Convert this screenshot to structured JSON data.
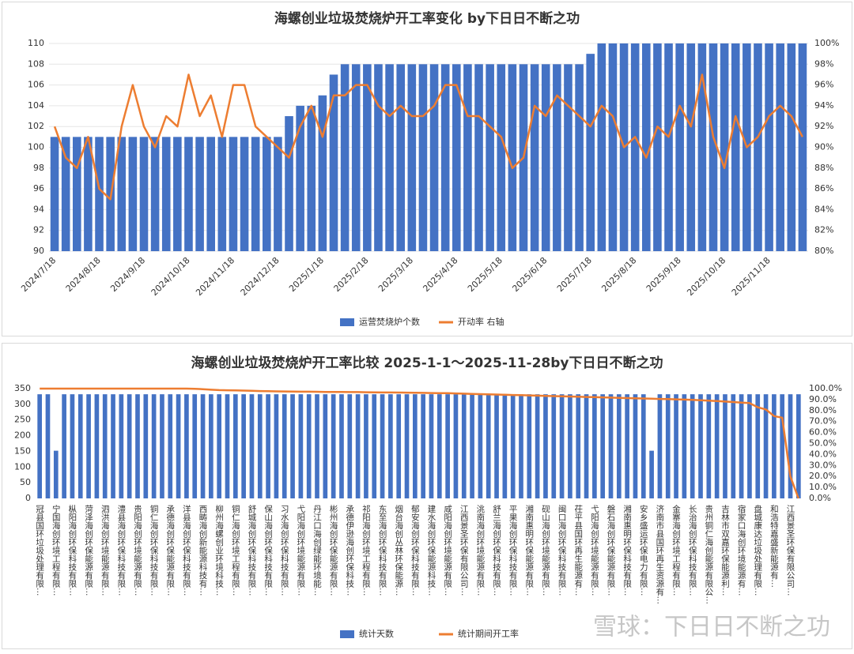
{
  "chart_data": [
    {
      "type": "combo",
      "title": "海螺创业垃圾焚烧炉开工率变化 by下日日不断之功",
      "grid": true,
      "categories": [
        "2024/7/18",
        null,
        null,
        null,
        "2024/8/18",
        null,
        null,
        null,
        "2024/9/18",
        null,
        null,
        null,
        "2024/10/18",
        null,
        null,
        null,
        "2024/11/18",
        null,
        null,
        null,
        "2024/12/18",
        null,
        null,
        null,
        "2025/1/18",
        null,
        null,
        null,
        "2025/2/18",
        null,
        null,
        null,
        "2025/3/18",
        null,
        null,
        null,
        "2025/4/18",
        null,
        null,
        null,
        "2025/5/18",
        null,
        null,
        null,
        "2025/6/18",
        null,
        null,
        null,
        "2025/7/18",
        null,
        null,
        null,
        "2025/8/18",
        null,
        null,
        null,
        "2025/9/18",
        null,
        null,
        null,
        "2025/10/18",
        null,
        null,
        null,
        "2025/11/18",
        null,
        null,
        null
      ],
      "ylim": [
        90,
        110
      ],
      "yticks": [
        90,
        92,
        94,
        96,
        98,
        100,
        102,
        104,
        106,
        108,
        110
      ],
      "y2lim": [
        80,
        100
      ],
      "y2ticks": [
        {
          "value": 80,
          "label": "80%"
        },
        {
          "value": 82,
          "label": "82%"
        },
        {
          "value": 84,
          "label": "84%"
        },
        {
          "value": 86,
          "label": "86%"
        },
        {
          "value": 88,
          "label": "88%"
        },
        {
          "value": 90,
          "label": "90%"
        },
        {
          "value": 92,
          "label": "92%"
        },
        {
          "value": 94,
          "label": "94%"
        },
        {
          "value": 96,
          "label": "96%"
        },
        {
          "value": 98,
          "label": "98%"
        },
        {
          "value": 100,
          "label": "100%"
        }
      ],
      "series": [
        {
          "name": "运营焚烧炉个数",
          "type": "bar",
          "color": "#4472c4",
          "values": [
            101,
            101,
            101,
            101,
            101,
            101,
            101,
            101,
            101,
            101,
            101,
            101,
            101,
            101,
            101,
            101,
            101,
            101,
            101,
            101,
            101,
            103,
            104,
            104,
            105,
            107,
            108,
            108,
            108,
            108,
            108,
            108,
            108,
            108,
            108,
            108,
            108,
            108,
            108,
            108,
            108,
            108,
            108,
            108,
            108,
            108,
            108,
            108,
            109,
            110,
            110,
            110,
            110,
            110,
            110,
            110,
            110,
            110,
            110,
            110,
            110,
            110,
            110,
            110,
            110,
            110,
            110,
            110
          ]
        },
        {
          "name": "开动率 右轴",
          "type": "line",
          "axis": "y2",
          "color": "#ed7d31",
          "values": [
            92,
            89,
            88,
            91,
            86,
            85,
            92,
            96,
            92,
            90,
            93,
            92,
            97,
            93,
            95,
            91,
            96,
            96,
            92,
            91,
            90,
            89,
            92,
            94,
            91,
            95,
            95,
            96,
            96,
            94,
            93,
            94,
            93,
            93,
            94,
            96,
            96,
            93,
            93,
            92,
            91,
            88,
            89,
            94,
            93,
            95,
            94,
            93,
            92,
            94,
            93,
            90,
            91,
            89,
            92,
            91,
            94,
            92,
            97,
            91,
            88,
            93,
            90,
            91,
            93,
            94,
            93,
            91
          ]
        }
      ]
    },
    {
      "type": "combo",
      "title": "海螺创业垃圾焚烧炉开工率比较 2025-1-1～2025-11-28by下日日不断之功",
      "grid": false,
      "categories": [
        "冠县国环垃圾处理有限…",
        null,
        "宁国海创环境工程有限…",
        null,
        "枞阳海创环保科技有限…",
        null,
        "菏泽海创环保能源有限…",
        null,
        "泗洪海创环境能源有限…",
        null,
        "澧县海创环保科技有限…",
        null,
        "贵阳海创环境能源有限…",
        null,
        "铜仁海创环保科技有限…",
        null,
        "承德海创环保能源有限…",
        null,
        "洋县海创环保科技有限…",
        null,
        "西畴海创新能源科技有…",
        null,
        "柳州海螺创业环境科技…",
        null,
        "铜仁海创环境工程有限…",
        null,
        "舒城海创环保科技有限…",
        null,
        "保山海创环保科技有限…",
        null,
        "习水海创环保科技有限…",
        null,
        "弋阳海创环境能源有限…",
        null,
        "丹江口海创绿能环境能…",
        null,
        "彬州海创环保能源有限…",
        null,
        "承德伊逊海创环保科技…",
        null,
        "祁阳海创环境工程有限…",
        null,
        "东至海创环保科技有限…",
        null,
        "烟台海创丛林环保能源…",
        null,
        "郁安海创环保科技有限…",
        null,
        "建水海创环保能源科技…",
        null,
        "咸阳海创环境能源有限…",
        null,
        "江西景圣环保有限公司…",
        null,
        "洮南海创环境能源有限…",
        null,
        "舒兰海创环保科技有限…",
        null,
        "平果海创环保科技有限…",
        null,
        "湘南惠明环保能源有限…",
        null,
        "砚山海创环境能源有限…",
        null,
        "闽口海创环保科技有限…",
        null,
        "茌平县国环再生能源有…",
        null,
        "弋阳海创环境能源有限…",
        null,
        "磐石海创环保能源有限…",
        null,
        "湘南惠明环保科技有限…",
        null,
        "安乡盛运环保电力有限…",
        null,
        "济南市县国环再生资源有…",
        null,
        "金寨海创环境工程有限…",
        null,
        "长治海创环保科技有限…",
        null,
        "贵州铜仁海创能源有限公…",
        null,
        "吉林市双嘉环保能源利…",
        null,
        "宿家口海创环境能源有…",
        null,
        "盘城康达垃圾处理有限…",
        null,
        "和浩特嘉盛新能源有…",
        null,
        "江西景圣环保有限公司…",
        null
      ],
      "ylim": [
        0,
        350
      ],
      "yticks": [
        0,
        50,
        100,
        150,
        200,
        250,
        300,
        350
      ],
      "y2lim": [
        0,
        100
      ],
      "y2ticks": [
        {
          "value": 0,
          "label": "0.0%"
        },
        {
          "value": 10,
          "label": "10.0%"
        },
        {
          "value": 20,
          "label": "20.0%"
        },
        {
          "value": 30,
          "label": "30.0%"
        },
        {
          "value": 40,
          "label": "40.0%"
        },
        {
          "value": 50,
          "label": "50.0%"
        },
        {
          "value": 60,
          "label": "60.0%"
        },
        {
          "value": 70,
          "label": "70.0%"
        },
        {
          "value": 80,
          "label": "80.0%"
        },
        {
          "value": 90,
          "label": "90.0%"
        },
        {
          "value": 100,
          "label": "100.0%"
        }
      ],
      "series": [
        {
          "name": "统计天数",
          "type": "bar",
          "color": "#4472c4",
          "values": [
            332,
            332,
            152,
            332,
            332,
            332,
            332,
            332,
            332,
            332,
            332,
            332,
            332,
            332,
            332,
            332,
            332,
            332,
            332,
            332,
            332,
            332,
            332,
            332,
            332,
            332,
            332,
            332,
            332,
            332,
            332,
            332,
            332,
            332,
            332,
            332,
            332,
            332,
            332,
            332,
            332,
            332,
            332,
            332,
            332,
            332,
            332,
            332,
            332,
            332,
            332,
            332,
            332,
            332,
            332,
            332,
            332,
            332,
            332,
            332,
            332,
            332,
            332,
            332,
            332,
            332,
            332,
            332,
            332,
            332,
            332,
            332,
            332,
            332,
            332,
            152,
            332,
            332,
            332,
            332,
            332,
            332,
            332,
            332,
            332,
            332,
            332,
            332,
            332,
            332,
            332,
            332,
            332,
            332
          ]
        },
        {
          "name": "统计期间开工率",
          "type": "line",
          "axis": "y2",
          "color": "#ed7d31",
          "values": [
            100,
            100,
            100,
            100,
            100,
            100,
            100,
            100,
            100,
            100,
            100,
            100,
            100,
            100,
            100,
            100,
            100,
            100,
            100,
            99.8,
            99.5,
            99,
            98.6,
            98.5,
            98.4,
            98.2,
            98,
            97.8,
            97.6,
            97.5,
            97.4,
            97.3,
            97.2,
            97.2,
            97.1,
            97,
            97,
            96.9,
            96.8,
            96.8,
            96.7,
            96.6,
            96.5,
            96.5,
            96.4,
            96.3,
            96.2,
            96.1,
            96,
            95.9,
            95.8,
            95.6,
            95.4,
            95.2,
            95,
            94.8,
            94.6,
            94.4,
            94.2,
            94,
            93.8,
            93.6,
            93.4,
            93.2,
            93,
            92.8,
            92.6,
            92.4,
            92.2,
            92,
            91.8,
            91.6,
            91.4,
            91.2,
            91,
            90.8,
            90.6,
            90.4,
            90.2,
            90,
            89.7,
            89.4,
            89,
            88.6,
            88.2,
            87.8,
            87.3,
            86.8,
            83,
            81,
            75,
            73.5,
            20,
            0
          ]
        }
      ]
    }
  ],
  "watermark": "雪球：下日日不断之功"
}
